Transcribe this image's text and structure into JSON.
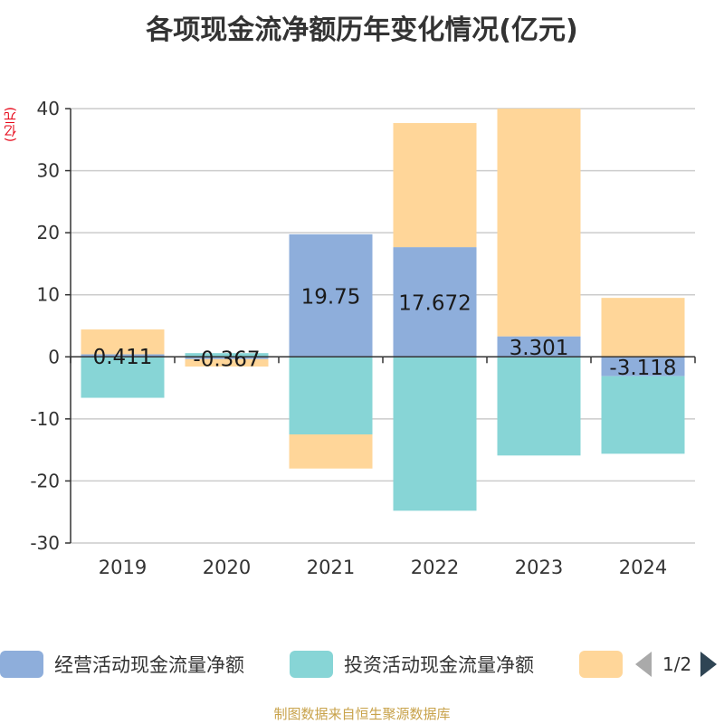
{
  "title": "各项现金流净额历年变化情况(亿元)",
  "footer": "制图数据来自恒生聚源数据库",
  "pager": {
    "text": "1/2"
  },
  "chart_data": {
    "type": "bar",
    "stacked": true,
    "title": "各项现金流净额历年变化情况(亿元)",
    "ylabel": "(亿元)",
    "xlabel": "",
    "categories": [
      "2019",
      "2020",
      "2021",
      "2022",
      "2023",
      "2024"
    ],
    "ylim": [
      -30,
      40
    ],
    "yticks": [
      40,
      30,
      20,
      10,
      0,
      -10,
      -20,
      -30
    ],
    "grid": true,
    "legend_position": "bottom",
    "series": [
      {
        "name": "经营活动现金流量净额",
        "color": "#8eaedb",
        "values": [
          0.411,
          -0.367,
          19.75,
          17.672,
          3.301,
          -3.118
        ],
        "labels": [
          "0.411",
          "-0.367",
          "19.75",
          "17.672",
          "3.301",
          "-3.118"
        ]
      },
      {
        "name": "投资活动现金流量净额",
        "color": "#87d5d6",
        "values": [
          -6.6,
          0.6,
          -12.5,
          -24.8,
          -15.9,
          -12.5
        ]
      },
      {
        "name": "",
        "color": "#ffd699",
        "values": [
          4.0,
          -1.2,
          -5.5,
          20.0,
          36.7,
          9.5
        ]
      }
    ]
  }
}
